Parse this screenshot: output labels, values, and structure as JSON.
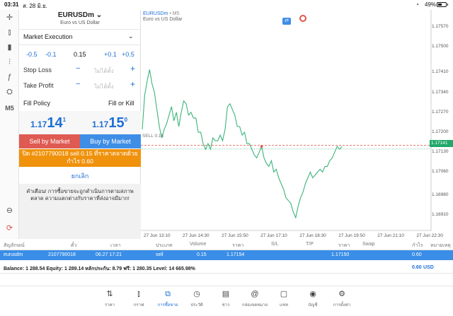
{
  "status": {
    "time": "03:31",
    "date": "ส. 28 มิ.ย.",
    "battery": "49%"
  },
  "left_tools": [
    {
      "name": "crosshair-icon",
      "glyph": "✛"
    },
    {
      "name": "candles-icon",
      "glyph": "⫾"
    },
    {
      "name": "bars-icon",
      "glyph": "▮"
    },
    {
      "name": "indicators-icon",
      "glyph": "⫶"
    },
    {
      "name": "function-icon",
      "glyph": "ƒ"
    },
    {
      "name": "objects-icon",
      "glyph": "⛭"
    },
    {
      "name": "timeframe-label",
      "glyph": "M5"
    },
    {
      "name": "zoom-icon",
      "glyph": "⊖"
    },
    {
      "name": "sync-icon",
      "glyph": "⟳"
    }
  ],
  "order": {
    "symbol": "EURUSDm",
    "symbol_sub": "Euro vs US Dollar",
    "execution": "Market Execution",
    "vol_buttons": [
      "-0.5",
      "-0.1",
      "+0.1",
      "+0.5"
    ],
    "volume": "0.15",
    "stop_loss": {
      "label": "Stop Loss",
      "minus": "−",
      "placeholder": "ไม่ได้ตั้ง",
      "plus": "+"
    },
    "take_profit": {
      "label": "Take Profit",
      "minus": "−",
      "placeholder": "ไม่ได้ตั้ง",
      "plus": "+"
    },
    "fill_policy": {
      "label": "Fill Policy",
      "value": "Fill or Kill"
    },
    "bid": {
      "small": "1.17",
      "big": "14",
      "sup": "1"
    },
    "ask": {
      "small": "1.17",
      "big": "15",
      "sup": "0"
    },
    "sell_label": "Sell by Market",
    "buy_label": "Buy by Market",
    "close_line1": "ปิด #2107790018 sell 0.15 ที่ราคาตลาดด้วย",
    "close_line2": "กำไร 0.60",
    "cancel_label": "ยกเลิก",
    "warning": "คำเตือน! การซื้อขายจะถูกดำเนินการตามสภาพตลาด ความแตกต่างกับราคาที่ส่งอาจมีมาก!"
  },
  "chart_header": {
    "symbol": "EURUSDm",
    "tf": "• M5",
    "sub": "Euro vs US Dollar",
    "sell_line": "SELL 0.15",
    "bid_tag": "1.17141"
  },
  "chart_data": {
    "type": "line",
    "title": "",
    "xlabel": "",
    "ylabel": "",
    "ylim": [
      1.1686,
      1.1758
    ],
    "y_ticks": [
      "1.17570",
      "1.17500",
      "1.17410",
      "1.17340",
      "1.17270",
      "1.17200",
      "1.17130",
      "1.17060",
      "1.16980",
      "1.16910"
    ],
    "y_tick_values": [
      1.1757,
      1.175,
      1.1741,
      1.1734,
      1.1727,
      1.172,
      1.1713,
      1.1706,
      1.1698,
      1.1691
    ],
    "x_ticks": [
      "27 Jun 13:10",
      "27 Jun 14:30",
      "27 Jun 15:50",
      "27 Jun 17:10",
      "27 Jun 18:30",
      "27 Jun 19:50",
      "27 Jun 21:10",
      "27 Jun 22:30"
    ],
    "x_tick_index": [
      0,
      16,
      32,
      48,
      64,
      80,
      96,
      112
    ],
    "sell_level": 1.17154,
    "bid_level": 1.17141,
    "series": [
      {
        "values": [
          1.1721,
          1.1733,
          1.1738,
          1.1742,
          1.1737,
          1.1734,
          1.1728,
          1.1722,
          1.1718,
          1.1721,
          1.1723,
          1.1726,
          1.1729,
          1.1724,
          1.1727,
          1.1722,
          1.1727,
          1.1731,
          1.173,
          1.1726,
          1.1727,
          1.1725,
          1.1725,
          1.172,
          1.172,
          1.1716,
          1.1714,
          1.1716,
          1.1714,
          1.1718,
          1.1717,
          1.1717,
          1.1719,
          1.1717,
          1.1721,
          1.1729,
          1.173,
          1.1728,
          1.1726,
          1.1722,
          1.1722,
          1.1719,
          1.172,
          1.1716,
          1.1716,
          1.1714,
          1.1712,
          1.1711,
          1.1713,
          1.1715,
          1.1711,
          1.1709,
          1.1708,
          1.171,
          1.1706,
          1.1707,
          1.1704,
          1.1702,
          1.17,
          1.1697,
          1.1696,
          1.1695,
          1.1692,
          1.169,
          1.1694,
          1.1697,
          1.1699,
          1.1702,
          1.1704,
          1.1706,
          1.1704,
          1.1705,
          1.1706,
          1.1707,
          1.1706,
          1.1708,
          1.1708,
          1.171,
          1.1711,
          1.1713,
          1.1715,
          1.1714,
          1.1715
        ]
      }
    ]
  },
  "positions": {
    "headers": [
      "สัญลักษณ์",
      "ตั๋ว",
      "เวลา",
      "ประเภท",
      "Volume",
      "ราคา",
      "S/L",
      "T/P",
      "ราคา",
      "Swap",
      "กำไร",
      "หมายเหตุ"
    ],
    "row": {
      "symbol": "eurusdm",
      "ticket": "2107790018",
      "time": "06.27 17:21",
      "type": "sell",
      "volume": "0.15",
      "price": "1.17154",
      "price2": "1.17150",
      "profit": "0.60"
    },
    "balance": "Balance: 1 288.54 Equity: 1 289.14 หลักประกัน: 8.79 ฟรี: 1 280.35 Level: 14 665.98%",
    "total": "0.60",
    "currency": "USD"
  },
  "tabs": [
    {
      "name": "quotes",
      "icon": "⇅",
      "label": "ราคา"
    },
    {
      "name": "chart",
      "icon": "⫾",
      "label": "กราฟ"
    },
    {
      "name": "trade",
      "icon": "⧉",
      "label": "การซื้อขาย",
      "active": true
    },
    {
      "name": "history",
      "icon": "◷",
      "label": "ประวัติ"
    },
    {
      "name": "news",
      "icon": "▤",
      "label": "ข่าว"
    },
    {
      "name": "mailbox",
      "icon": "@",
      "label": "กล่องจดหมาย"
    },
    {
      "name": "chat",
      "icon": "▢",
      "label": "แชท"
    },
    {
      "name": "accounts",
      "icon": "◉",
      "label": "บัญชี"
    },
    {
      "name": "settings",
      "icon": "⚙",
      "label": "การตั้งค่า"
    }
  ]
}
